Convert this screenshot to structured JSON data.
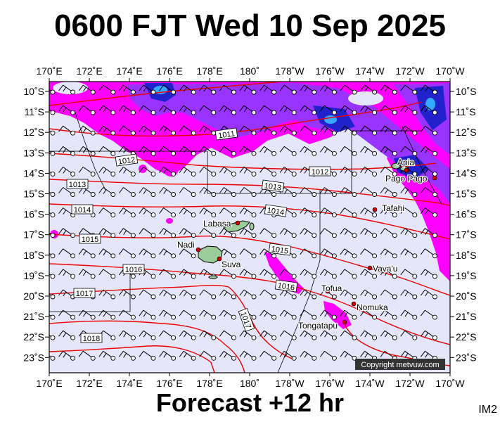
{
  "title": "0600 FJT Wed 10 Sep 2025",
  "subtitle": "Forecast +12 hr",
  "corner_label": "IM2",
  "copyright": "Copyright metvuw.com",
  "colors": {
    "background": "#e6e6fa",
    "rain_light": "#ff00ff",
    "rain_mid": "#9933ff",
    "rain_heavy": "#2222cc",
    "rain_core": "#33aaff",
    "isobar": "#ee0000",
    "land": "#9acd9a",
    "city": "#cc0000"
  },
  "lon_labels": [
    "170˚E",
    "172˚E",
    "174˚E",
    "176˚E",
    "178˚E",
    "180˚",
    "178˚W",
    "176˚W",
    "174˚W",
    "172˚W",
    "170˚W"
  ],
  "lat_labels": [
    "10˚S",
    "11˚S",
    "12˚S",
    "13˚S",
    "14˚S",
    "15˚S",
    "16˚S",
    "17˚S",
    "18˚S",
    "19˚S",
    "20˚S",
    "21˚S",
    "22˚S",
    "23˚S"
  ],
  "isobars": [
    {
      "value": "1011",
      "label": "1011"
    },
    {
      "value": "1012",
      "label": "1012"
    },
    {
      "value": "1012",
      "label": "1012"
    },
    {
      "value": "1013",
      "label": "1013"
    },
    {
      "value": "1013",
      "label": "1013"
    },
    {
      "value": "1014",
      "label": "1014"
    },
    {
      "value": "1014",
      "label": "1014"
    },
    {
      "value": "1015",
      "label": "1015"
    },
    {
      "value": "1015",
      "label": "1015"
    },
    {
      "value": "1016",
      "label": "1016"
    },
    {
      "value": "1016",
      "label": "1016"
    },
    {
      "value": "1017",
      "label": "1017"
    },
    {
      "value": "1017",
      "label": "1017"
    },
    {
      "value": "1018",
      "label": "1018"
    }
  ],
  "places": [
    {
      "name": "Apia"
    },
    {
      "name": "Pago Pago"
    },
    {
      "name": "Tafahi"
    },
    {
      "name": "Labasa"
    },
    {
      "name": "Nadi"
    },
    {
      "name": "Suva"
    },
    {
      "name": "Vava'u"
    },
    {
      "name": "Tofua"
    },
    {
      "name": "Nomuka"
    },
    {
      "name": "Tongatapu"
    }
  ]
}
